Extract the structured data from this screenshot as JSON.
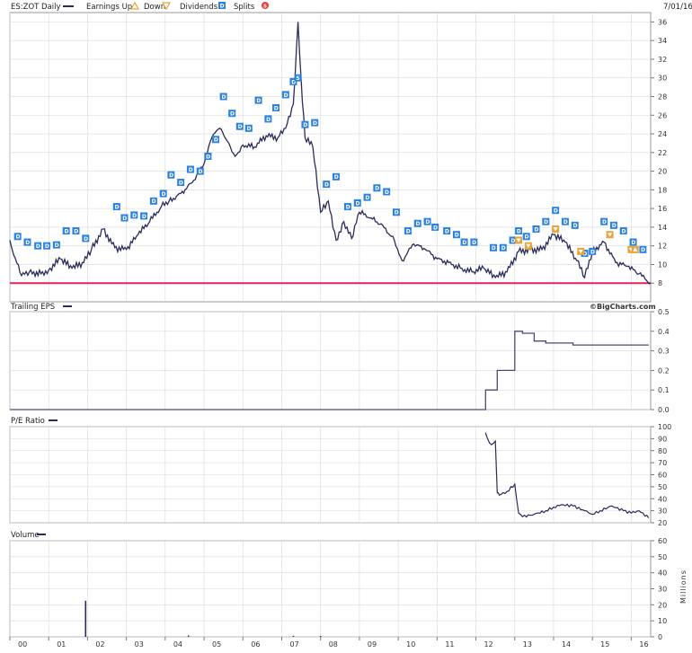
{
  "header": {
    "symbol_label": "ES:ZOT Daily",
    "legend": [
      {
        "label": "Earnings Up",
        "icon": "triangle-up-icon",
        "color": "#e8a33a"
      },
      {
        "label": "Down",
        "icon": "triangle-down-icon",
        "color": "#e8a33a"
      },
      {
        "label": "Dividends",
        "icon": "dividend-d-icon",
        "color": "#2c82e0"
      },
      {
        "label": "Splits",
        "icon": "split-s-icon",
        "color": "#e24040"
      }
    ],
    "date": "7/01/16"
  },
  "watermark": "©BigCharts.com",
  "colors": {
    "series": "#2b2b5c",
    "reference_line": "#e0245e",
    "dividend_marker": "#2c82e0",
    "earnings_marker": "#e8a33a",
    "grid": "#d8d8d8"
  },
  "chart_data": [
    {
      "type": "line",
      "panel": "price",
      "title": "ES:ZOT Daily",
      "x_tick_labels": [
        "00",
        "01",
        "02",
        "03",
        "04",
        "05",
        "06",
        "07",
        "08",
        "09",
        "10",
        "11",
        "12",
        "13",
        "14",
        "15",
        "16"
      ],
      "y_tick_labels": [
        "8",
        "10",
        "12",
        "14",
        "16",
        "18",
        "20",
        "22",
        "24",
        "26",
        "28",
        "30",
        "32",
        "34",
        "36"
      ],
      "ylim": [
        6,
        37
      ],
      "series": [
        {
          "x": [
            2000.0,
            2000.1,
            2000.3,
            2000.5,
            2000.8,
            2001.0,
            2001.3,
            2001.6,
            2001.9,
            2002.1,
            2002.4,
            2002.7,
            2003.0,
            2003.3,
            2003.6,
            2003.9,
            2004.1,
            2004.4,
            2004.7,
            2005.0,
            2005.2,
            2005.4,
            2005.6,
            2005.8,
            2006.0,
            2006.3,
            2006.6,
            2006.9,
            2007.1,
            2007.3,
            2007.42,
            2007.5,
            2007.6,
            2007.8,
            2008.0,
            2008.2,
            2008.4,
            2008.6,
            2008.8,
            2009.0,
            2009.3,
            2009.6,
            2009.9,
            2010.1,
            2010.4,
            2010.7,
            2011.0,
            2011.3,
            2011.6,
            2011.9,
            2012.2,
            2012.5,
            2012.8,
            2013.1,
            2013.4,
            2013.7,
            2014.0,
            2014.3,
            2014.6,
            2014.8,
            2015.0,
            2015.3,
            2015.6,
            2015.9,
            2016.2,
            2016.5
          ],
          "values": [
            12.6,
            11.0,
            8.8,
            9.2,
            9.0,
            9.4,
            10.6,
            9.6,
            10.2,
            11.6,
            13.8,
            11.8,
            11.6,
            13.2,
            14.6,
            16.2,
            16.8,
            17.6,
            18.8,
            20.8,
            23.6,
            24.6,
            23.2,
            21.6,
            22.8,
            22.6,
            23.8,
            23.6,
            24.6,
            27.2,
            36.0,
            29.8,
            23.6,
            22.6,
            15.6,
            16.8,
            12.6,
            14.6,
            12.8,
            15.6,
            15.0,
            14.2,
            12.6,
            10.4,
            12.2,
            11.6,
            10.6,
            10.2,
            9.6,
            9.2,
            9.6,
            8.6,
            9.2,
            11.4,
            11.6,
            11.6,
            13.2,
            12.4,
            10.4,
            8.6,
            11.4,
            12.4,
            10.2,
            9.8,
            9.0,
            8.0
          ]
        }
      ],
      "reference_line": 8.0
    },
    {
      "type": "line",
      "panel": "trailing_eps",
      "title": "Trailing EPS",
      "y_tick_labels": [
        "0.0",
        "0.1",
        "0.2",
        "0.3",
        "0.4",
        "0.5"
      ],
      "ylim": [
        0,
        0.5
      ],
      "series": [
        {
          "x": [
            2000.0,
            2012.25,
            2012.25,
            2012.55,
            2012.55,
            2013.0,
            2013.0,
            2013.2,
            2013.2,
            2013.5,
            2013.5,
            2013.8,
            2013.8,
            2014.5,
            2014.5,
            2015.0,
            2015.0,
            2016.45
          ],
          "values": [
            0.0,
            0.0,
            0.1,
            0.1,
            0.2,
            0.2,
            0.4,
            0.4,
            0.39,
            0.39,
            0.35,
            0.35,
            0.34,
            0.34,
            0.33,
            0.33,
            0.33,
            0.33
          ]
        }
      ]
    },
    {
      "type": "line",
      "panel": "pe_ratio",
      "title": "P/E Ratio",
      "y_tick_labels": [
        "20",
        "30",
        "40",
        "50",
        "60",
        "70",
        "80",
        "90",
        "100"
      ],
      "ylim": [
        20,
        100
      ],
      "series": [
        {
          "x": [
            2012.25,
            2012.3,
            2012.4,
            2012.5,
            2012.55,
            2012.6,
            2012.8,
            2013.0,
            2013.1,
            2013.2,
            2013.5,
            2013.8,
            2014.0,
            2014.2,
            2014.5,
            2014.8,
            2015.0,
            2015.2,
            2015.5,
            2015.8,
            2016.0,
            2016.2,
            2016.45
          ],
          "values": [
            95,
            90,
            85,
            88,
            45,
            43,
            46,
            52,
            28,
            25,
            27,
            30,
            33,
            35,
            34,
            30,
            27,
            30,
            34,
            30,
            28,
            30,
            24
          ]
        }
      ]
    },
    {
      "type": "bar",
      "panel": "volume",
      "title": "Volume",
      "ylabel": "Millions",
      "y_tick_labels": [
        "0",
        "10",
        "20",
        "30",
        "40",
        "50",
        "60"
      ],
      "ylim": [
        0,
        60
      ],
      "x": [
        2001.95,
        2004.6,
        2007.3,
        2008.0
      ],
      "values": [
        22.5,
        0.8,
        0.6,
        0.5
      ]
    }
  ],
  "dividends": [
    {
      "x": 2000.2,
      "v": 13.0
    },
    {
      "x": 2000.45,
      "v": 12.4
    },
    {
      "x": 2000.72,
      "v": 12.0
    },
    {
      "x": 2000.95,
      "v": 12.0
    },
    {
      "x": 2001.2,
      "v": 12.1
    },
    {
      "x": 2001.45,
      "v": 13.6
    },
    {
      "x": 2001.7,
      "v": 13.6
    },
    {
      "x": 2001.95,
      "v": 12.8
    },
    {
      "x": 2002.75,
      "v": 16.2
    },
    {
      "x": 2002.95,
      "v": 15.0
    },
    {
      "x": 2003.2,
      "v": 15.3
    },
    {
      "x": 2003.45,
      "v": 15.2
    },
    {
      "x": 2003.7,
      "v": 16.8
    },
    {
      "x": 2003.95,
      "v": 17.6
    },
    {
      "x": 2004.15,
      "v": 19.6
    },
    {
      "x": 2004.4,
      "v": 18.8
    },
    {
      "x": 2004.65,
      "v": 20.2
    },
    {
      "x": 2004.9,
      "v": 20.0
    },
    {
      "x": 2005.1,
      "v": 21.6
    },
    {
      "x": 2005.3,
      "v": 23.4
    },
    {
      "x": 2005.5,
      "v": 28.0
    },
    {
      "x": 2005.72,
      "v": 26.2
    },
    {
      "x": 2005.92,
      "v": 24.8
    },
    {
      "x": 2006.15,
      "v": 24.6
    },
    {
      "x": 2006.4,
      "v": 27.6
    },
    {
      "x": 2006.65,
      "v": 25.6
    },
    {
      "x": 2006.85,
      "v": 26.8
    },
    {
      "x": 2007.1,
      "v": 28.2
    },
    {
      "x": 2007.3,
      "v": 29.6
    },
    {
      "x": 2007.6,
      "v": 25.0
    },
    {
      "x": 2007.85,
      "v": 25.2
    },
    {
      "x": 2008.15,
      "v": 18.6
    },
    {
      "x": 2008.4,
      "v": 19.4
    },
    {
      "x": 2008.7,
      "v": 16.2
    },
    {
      "x": 2008.95,
      "v": 16.6
    },
    {
      "x": 2009.2,
      "v": 17.2
    },
    {
      "x": 2009.45,
      "v": 18.2
    },
    {
      "x": 2009.7,
      "v": 17.8
    },
    {
      "x": 2009.95,
      "v": 15.6
    },
    {
      "x": 2010.25,
      "v": 13.6
    },
    {
      "x": 2010.5,
      "v": 14.4
    },
    {
      "x": 2010.75,
      "v": 14.6
    },
    {
      "x": 2010.95,
      "v": 14.0
    },
    {
      "x": 2011.25,
      "v": 13.6
    },
    {
      "x": 2011.5,
      "v": 13.2
    },
    {
      "x": 2011.7,
      "v": 12.4
    },
    {
      "x": 2011.95,
      "v": 12.4
    },
    {
      "x": 2012.45,
      "v": 11.8
    },
    {
      "x": 2012.7,
      "v": 11.8
    },
    {
      "x": 2012.95,
      "v": 12.6
    },
    {
      "x": 2013.1,
      "v": 13.6
    },
    {
      "x": 2013.3,
      "v": 13.0
    },
    {
      "x": 2013.55,
      "v": 13.8
    },
    {
      "x": 2013.8,
      "v": 14.6
    },
    {
      "x": 2014.05,
      "v": 15.8
    },
    {
      "x": 2014.3,
      "v": 14.6
    },
    {
      "x": 2014.55,
      "v": 14.2
    },
    {
      "x": 2014.8,
      "v": 11.2
    },
    {
      "x": 2015.0,
      "v": 11.4
    },
    {
      "x": 2015.3,
      "v": 14.6
    },
    {
      "x": 2015.55,
      "v": 14.2
    },
    {
      "x": 2015.8,
      "v": 13.6
    },
    {
      "x": 2016.05,
      "v": 12.4
    },
    {
      "x": 2016.3,
      "v": 11.6
    }
  ],
  "earnings_up": [
    {
      "x": 2016.1,
      "v": 11.6
    }
  ],
  "earnings_down": [
    {
      "x": 2013.1,
      "v": 12.6
    },
    {
      "x": 2013.35,
      "v": 12.0
    },
    {
      "x": 2014.05,
      "v": 13.8
    },
    {
      "x": 2014.7,
      "v": 11.4
    },
    {
      "x": 2015.45,
      "v": 13.2
    },
    {
      "x": 2016.0,
      "v": 11.6
    }
  ],
  "splits": [
    {
      "x": 2007.42,
      "v": 30.0
    }
  ]
}
